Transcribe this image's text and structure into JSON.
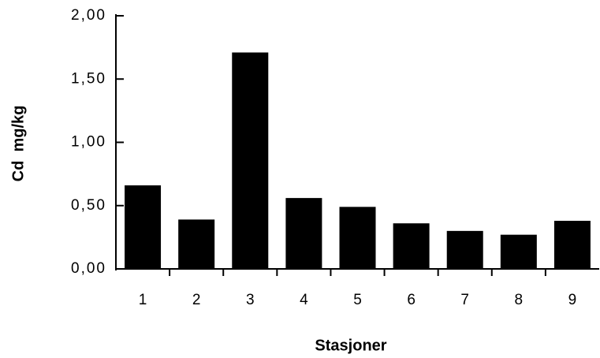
{
  "chart_data": {
    "type": "bar",
    "x_label": "Stasjoner",
    "y_label": "Cd  mg/kg",
    "categories": [
      "1",
      "2",
      "3",
      "4",
      "5",
      "6",
      "7",
      "8",
      "9"
    ],
    "values": [
      0.66,
      0.39,
      1.71,
      0.56,
      0.49,
      0.36,
      0.3,
      0.27,
      0.38
    ],
    "color": "#000000",
    "ylim": [
      0,
      2
    ],
    "yticks": [
      {
        "value": 0,
        "label": "0,00"
      },
      {
        "value": 0.5,
        "label": "0,50"
      },
      {
        "value": 1,
        "label": "1,00"
      },
      {
        "value": 1.5,
        "label": "1,50"
      },
      {
        "value": 2,
        "label": "2,00"
      }
    ],
    "grid": false
  }
}
